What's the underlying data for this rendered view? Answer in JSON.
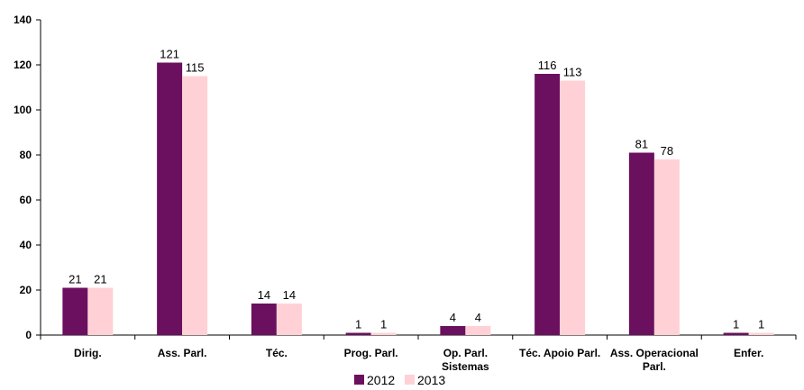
{
  "chart_data": {
    "type": "bar",
    "title": "",
    "xlabel": "",
    "ylabel": "",
    "ylim": [
      0,
      140
    ],
    "y_ticks": [
      0,
      20,
      40,
      60,
      80,
      100,
      120,
      140
    ],
    "grid": false,
    "legend_position": "bottom",
    "categories": [
      [
        "Dirig."
      ],
      [
        "Ass. Parl."
      ],
      [
        "Téc."
      ],
      [
        "Prog. Parl."
      ],
      [
        "Op. Parl.",
        "Sistemas"
      ],
      [
        "Téc. Apoio Parl."
      ],
      [
        "Ass. Operacional",
        "Parl."
      ],
      [
        "Enfer."
      ]
    ],
    "series": [
      {
        "name": "2012",
        "color": "#6b0f5f",
        "values": [
          21,
          121,
          14,
          1,
          4,
          116,
          81,
          1
        ]
      },
      {
        "name": "2013",
        "color": "#ffd1d6",
        "values": [
          21,
          115,
          14,
          1,
          4,
          113,
          78,
          1
        ]
      }
    ]
  }
}
